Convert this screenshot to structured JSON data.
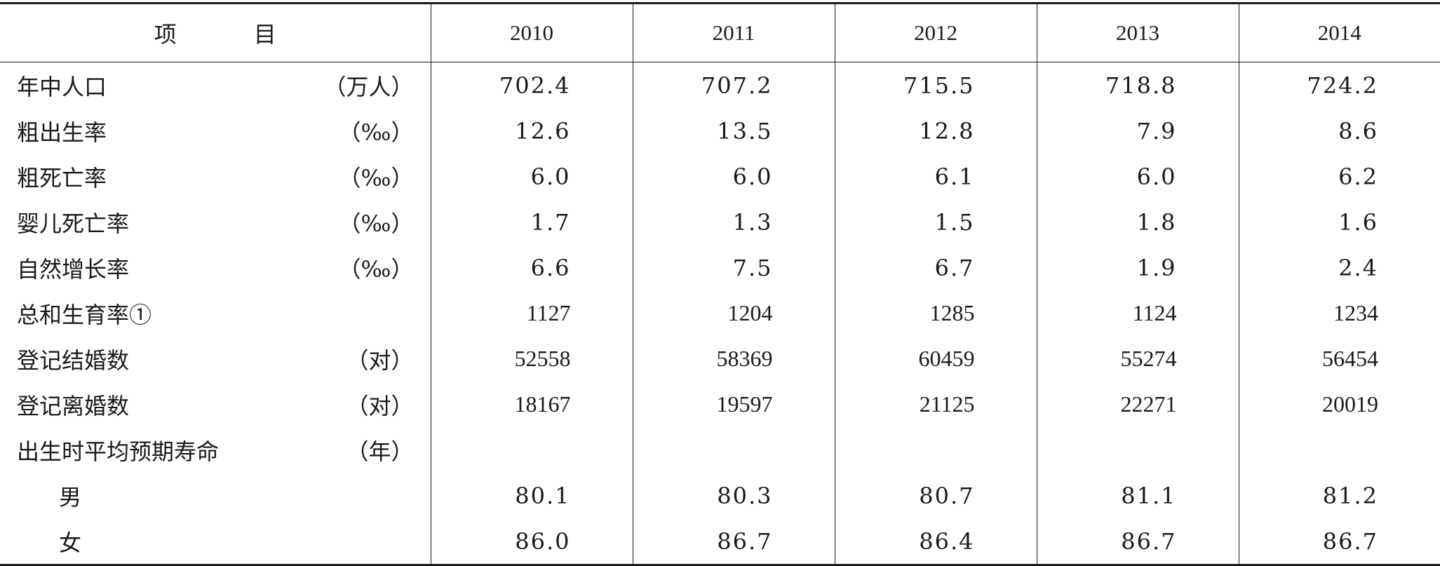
{
  "table": {
    "header": {
      "item_label_left": "项",
      "item_label_right": "目",
      "years": [
        "2010",
        "2011",
        "2012",
        "2013",
        "2014"
      ]
    },
    "rows": [
      {
        "label": "年中人口",
        "unit": "（万人）",
        "values": [
          "702.4",
          "707.2",
          "715.5",
          "718.8",
          "724.2"
        ]
      },
      {
        "label": "粗出生率",
        "unit": "（‰）",
        "values": [
          "12.6",
          "13.5",
          "12.8",
          "7.9",
          "8.6"
        ]
      },
      {
        "label": "粗死亡率",
        "unit": "（‰）",
        "values": [
          "6.0",
          "6.0",
          "6.1",
          "6.0",
          "6.2"
        ]
      },
      {
        "label": "婴儿死亡率",
        "unit": "（‰）",
        "values": [
          "1.7",
          "1.3",
          "1.5",
          "1.8",
          "1.6"
        ]
      },
      {
        "label": "自然增长率",
        "unit": "（‰）",
        "values": [
          "6.6",
          "7.5",
          "6.7",
          "1.9",
          "2.4"
        ]
      },
      {
        "label": "总和生育率①",
        "unit": "",
        "values": [
          "1127",
          "1204",
          "1285",
          "1124",
          "1234"
        ]
      },
      {
        "label": "登记结婚数",
        "unit": "（对）",
        "values": [
          "52558",
          "58369",
          "60459",
          "55274",
          "56454"
        ]
      },
      {
        "label": "登记离婚数",
        "unit": "（对）",
        "values": [
          "18167",
          "19597",
          "21125",
          "22271",
          "20019"
        ]
      },
      {
        "label": "出生时平均预期寿命",
        "unit": "（年）",
        "values": [
          "",
          "",
          "",
          "",
          ""
        ]
      },
      {
        "label": "男",
        "unit": "",
        "values": [
          "80.1",
          "80.3",
          "80.7",
          "81.1",
          "81.2"
        ]
      },
      {
        "label": "女",
        "unit": "",
        "values": [
          "86.0",
          "86.7",
          "86.4",
          "86.7",
          "86.7"
        ]
      }
    ]
  }
}
